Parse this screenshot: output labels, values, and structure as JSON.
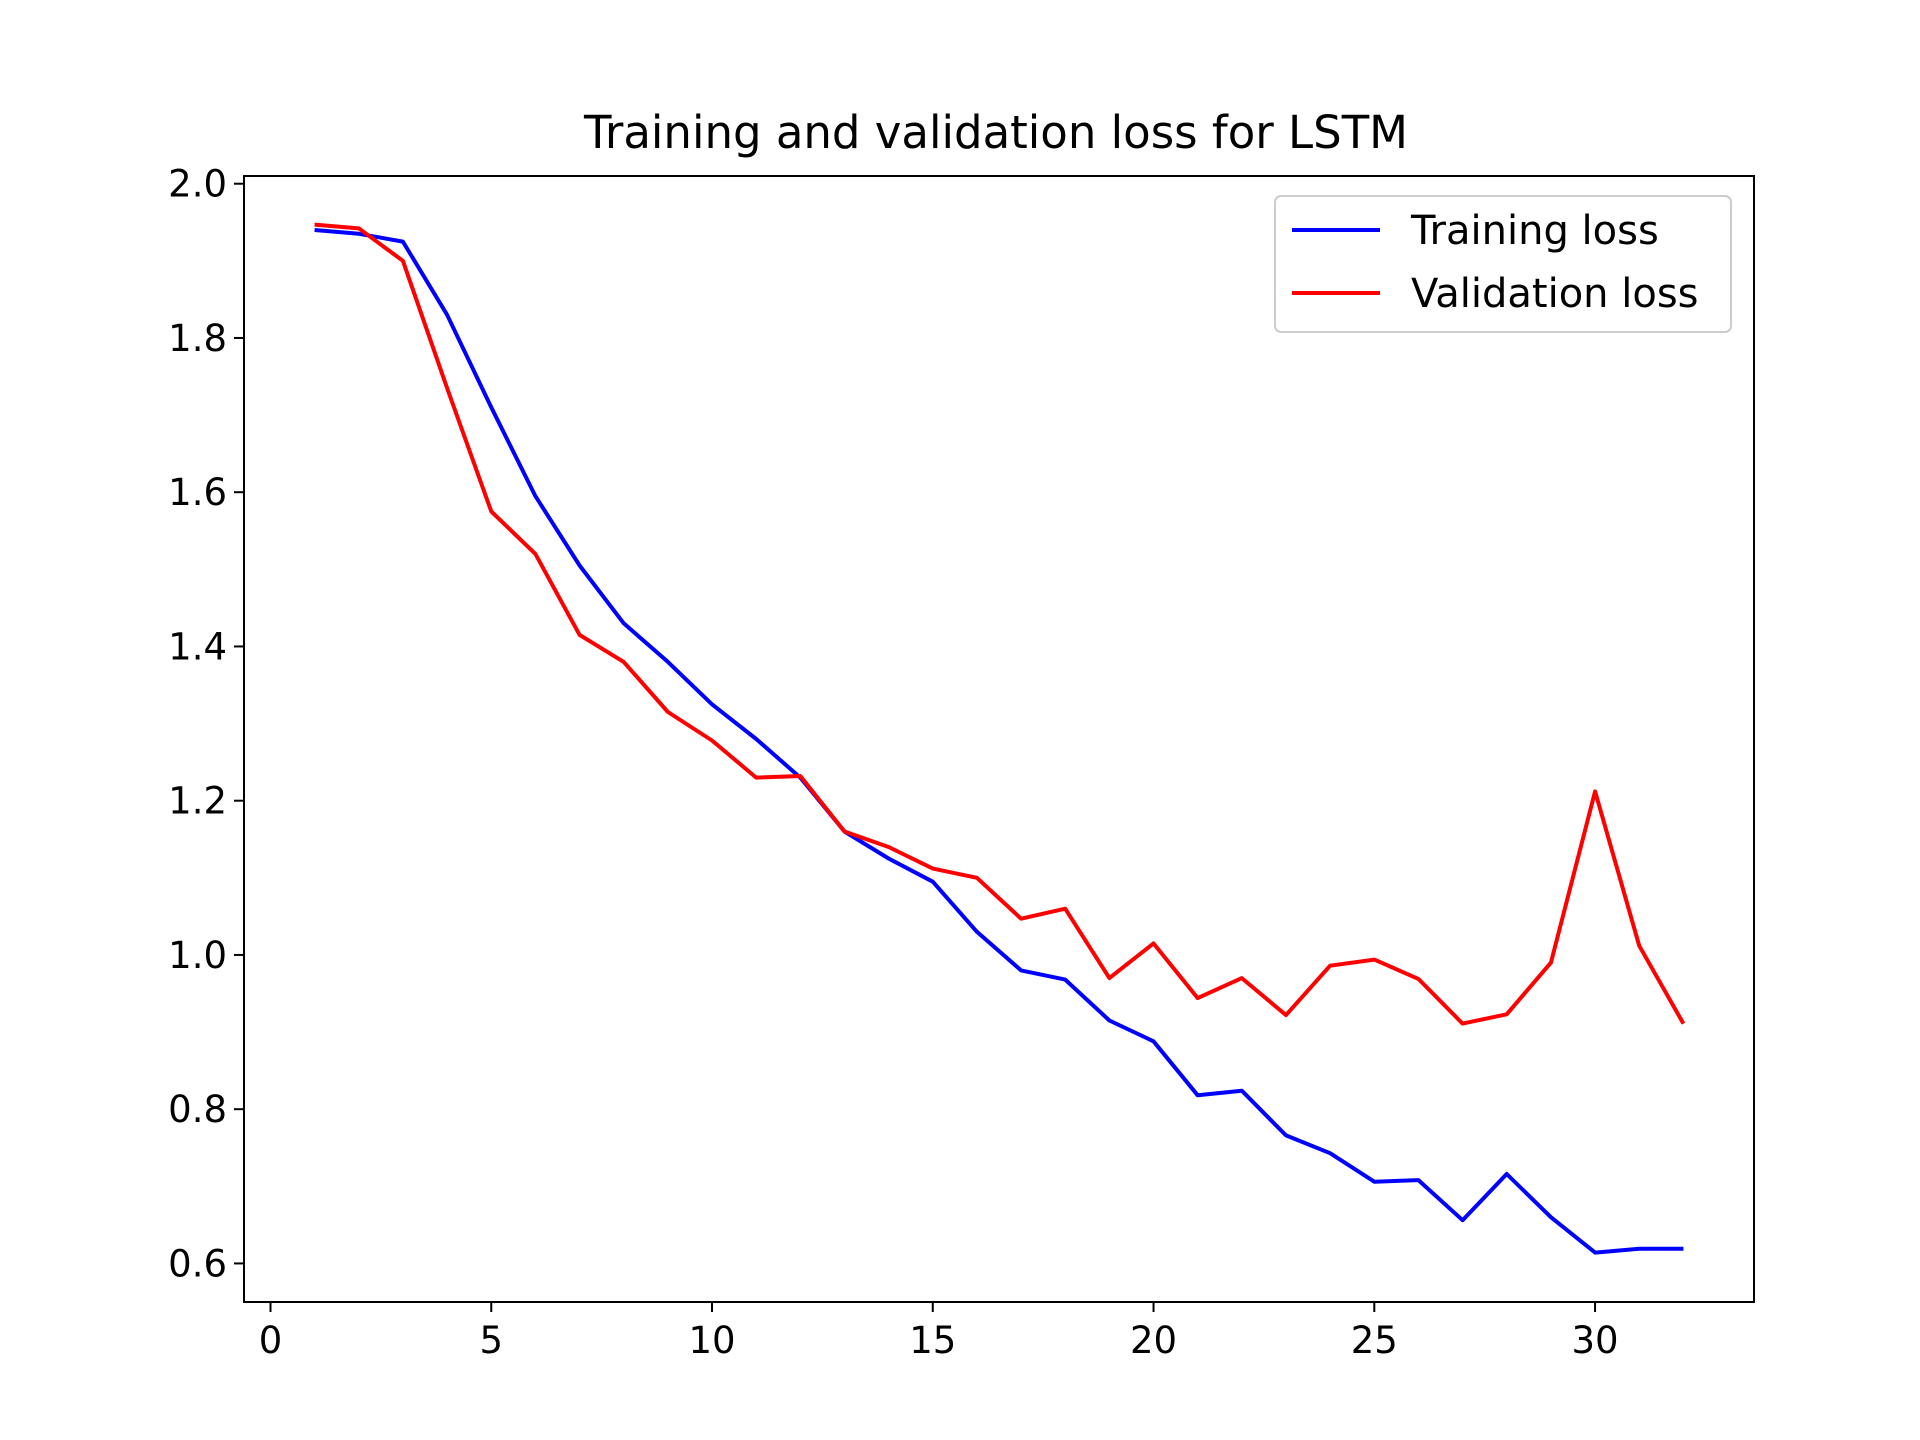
{
  "chart_data": {
    "type": "line",
    "title": "Training and validation loss for LSTM",
    "xlabel": "",
    "ylabel": "",
    "xlim": [
      -0.6,
      33.6
    ],
    "ylim": [
      0.55,
      2.01
    ],
    "xticks": [
      0,
      5,
      10,
      15,
      20,
      25,
      30
    ],
    "xtick_labels": [
      "0",
      "5",
      "10",
      "15",
      "20",
      "25",
      "30"
    ],
    "yticks": [
      0.6,
      0.8,
      1.0,
      1.2,
      1.4,
      1.6,
      1.8,
      2.0
    ],
    "ytick_labels": [
      "0.6",
      "0.8",
      "1.0",
      "1.2",
      "1.4",
      "1.6",
      "1.8",
      "2.0"
    ],
    "grid": false,
    "legend_position": "top-right",
    "x": [
      1,
      2,
      3,
      4,
      5,
      6,
      7,
      8,
      9,
      10,
      11,
      12,
      13,
      14,
      15,
      16,
      17,
      18,
      19,
      20,
      21,
      22,
      23,
      24,
      25,
      26,
      27,
      28,
      29,
      30,
      31,
      32
    ],
    "series": [
      {
        "name": "Training loss",
        "color": "#0000ff",
        "values": [
          1.94,
          1.935,
          1.925,
          1.83,
          1.71,
          1.595,
          1.505,
          1.43,
          1.38,
          1.325,
          1.28,
          1.23,
          1.16,
          1.125,
          1.095,
          1.03,
          0.98,
          0.968,
          0.915,
          0.888,
          0.818,
          0.824,
          0.766,
          0.743,
          0.706,
          0.708,
          0.656,
          0.716,
          0.66,
          0.614,
          0.619,
          0.619
        ]
      },
      {
        "name": "Validation loss",
        "color": "#ff0000",
        "values": [
          1.947,
          1.942,
          1.9,
          1.735,
          1.575,
          1.52,
          1.415,
          1.38,
          1.315,
          1.278,
          1.23,
          1.232,
          1.16,
          1.14,
          1.112,
          1.1,
          1.047,
          1.06,
          0.97,
          1.015,
          0.944,
          0.97,
          0.922,
          0.986,
          0.994,
          0.969,
          0.911,
          0.923,
          0.99,
          1.212,
          1.012,
          0.911
        ]
      }
    ]
  }
}
